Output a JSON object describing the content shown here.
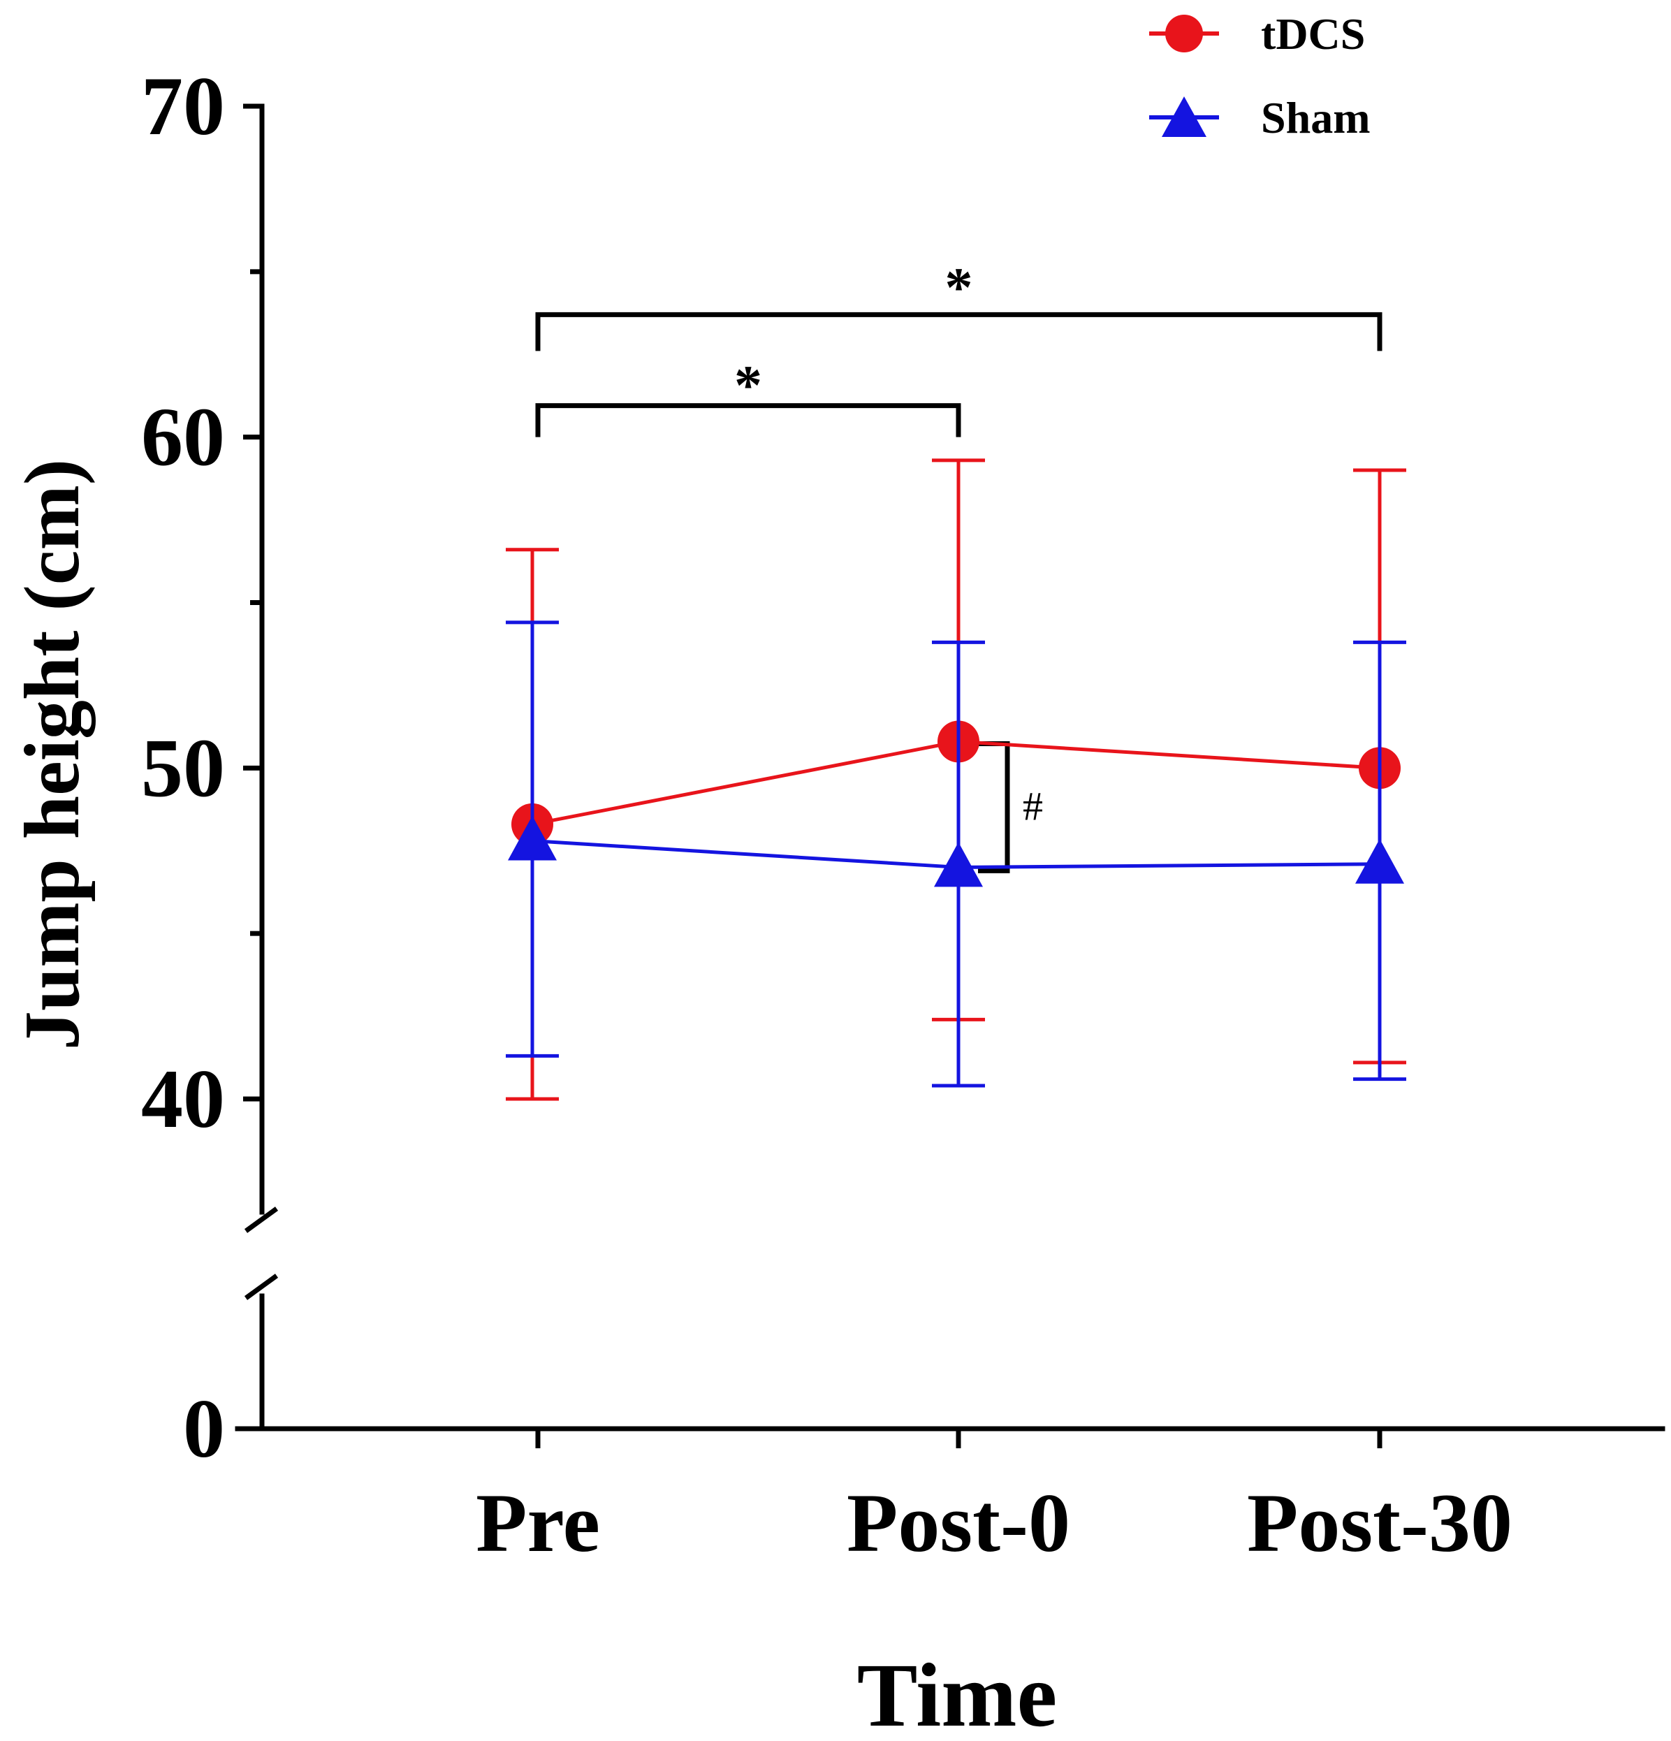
{
  "chart_data": {
    "type": "line",
    "title": "",
    "xlabel": "Time",
    "ylabel": "Jump height (cm)",
    "categories": [
      "Pre",
      "Post-0",
      "Post-30"
    ],
    "ylim": [
      0,
      70
    ],
    "y_axis_break": [
      0,
      36
    ],
    "yticks": [
      0,
      40,
      50,
      60,
      70
    ],
    "yticks_labels": [
      "0",
      "40",
      "50",
      "60",
      "70"
    ],
    "series": [
      {
        "name": "tDCS",
        "color": "#e8141b",
        "marker": "circle",
        "values": [
          48.3,
          50.8,
          50.0
        ],
        "error_low": [
          40.0,
          42.4,
          41.1
        ],
        "error_high": [
          56.6,
          59.3,
          59.0
        ]
      },
      {
        "name": "Sham",
        "color": "#1414e0",
        "marker": "triangle",
        "values": [
          47.8,
          47.0,
          47.1
        ],
        "error_low": [
          41.3,
          40.4,
          40.6
        ],
        "error_high": [
          54.4,
          53.8,
          53.8
        ]
      }
    ],
    "annotations": [
      {
        "type": "bracket",
        "from": "Pre",
        "to": "Post-0",
        "label": "*"
      },
      {
        "type": "bracket",
        "from": "Pre",
        "to": "Post-30",
        "label": "*"
      },
      {
        "type": "vertical-bracket",
        "at": "Post-0",
        "label": "#"
      }
    ],
    "legend_position": "top-right"
  }
}
